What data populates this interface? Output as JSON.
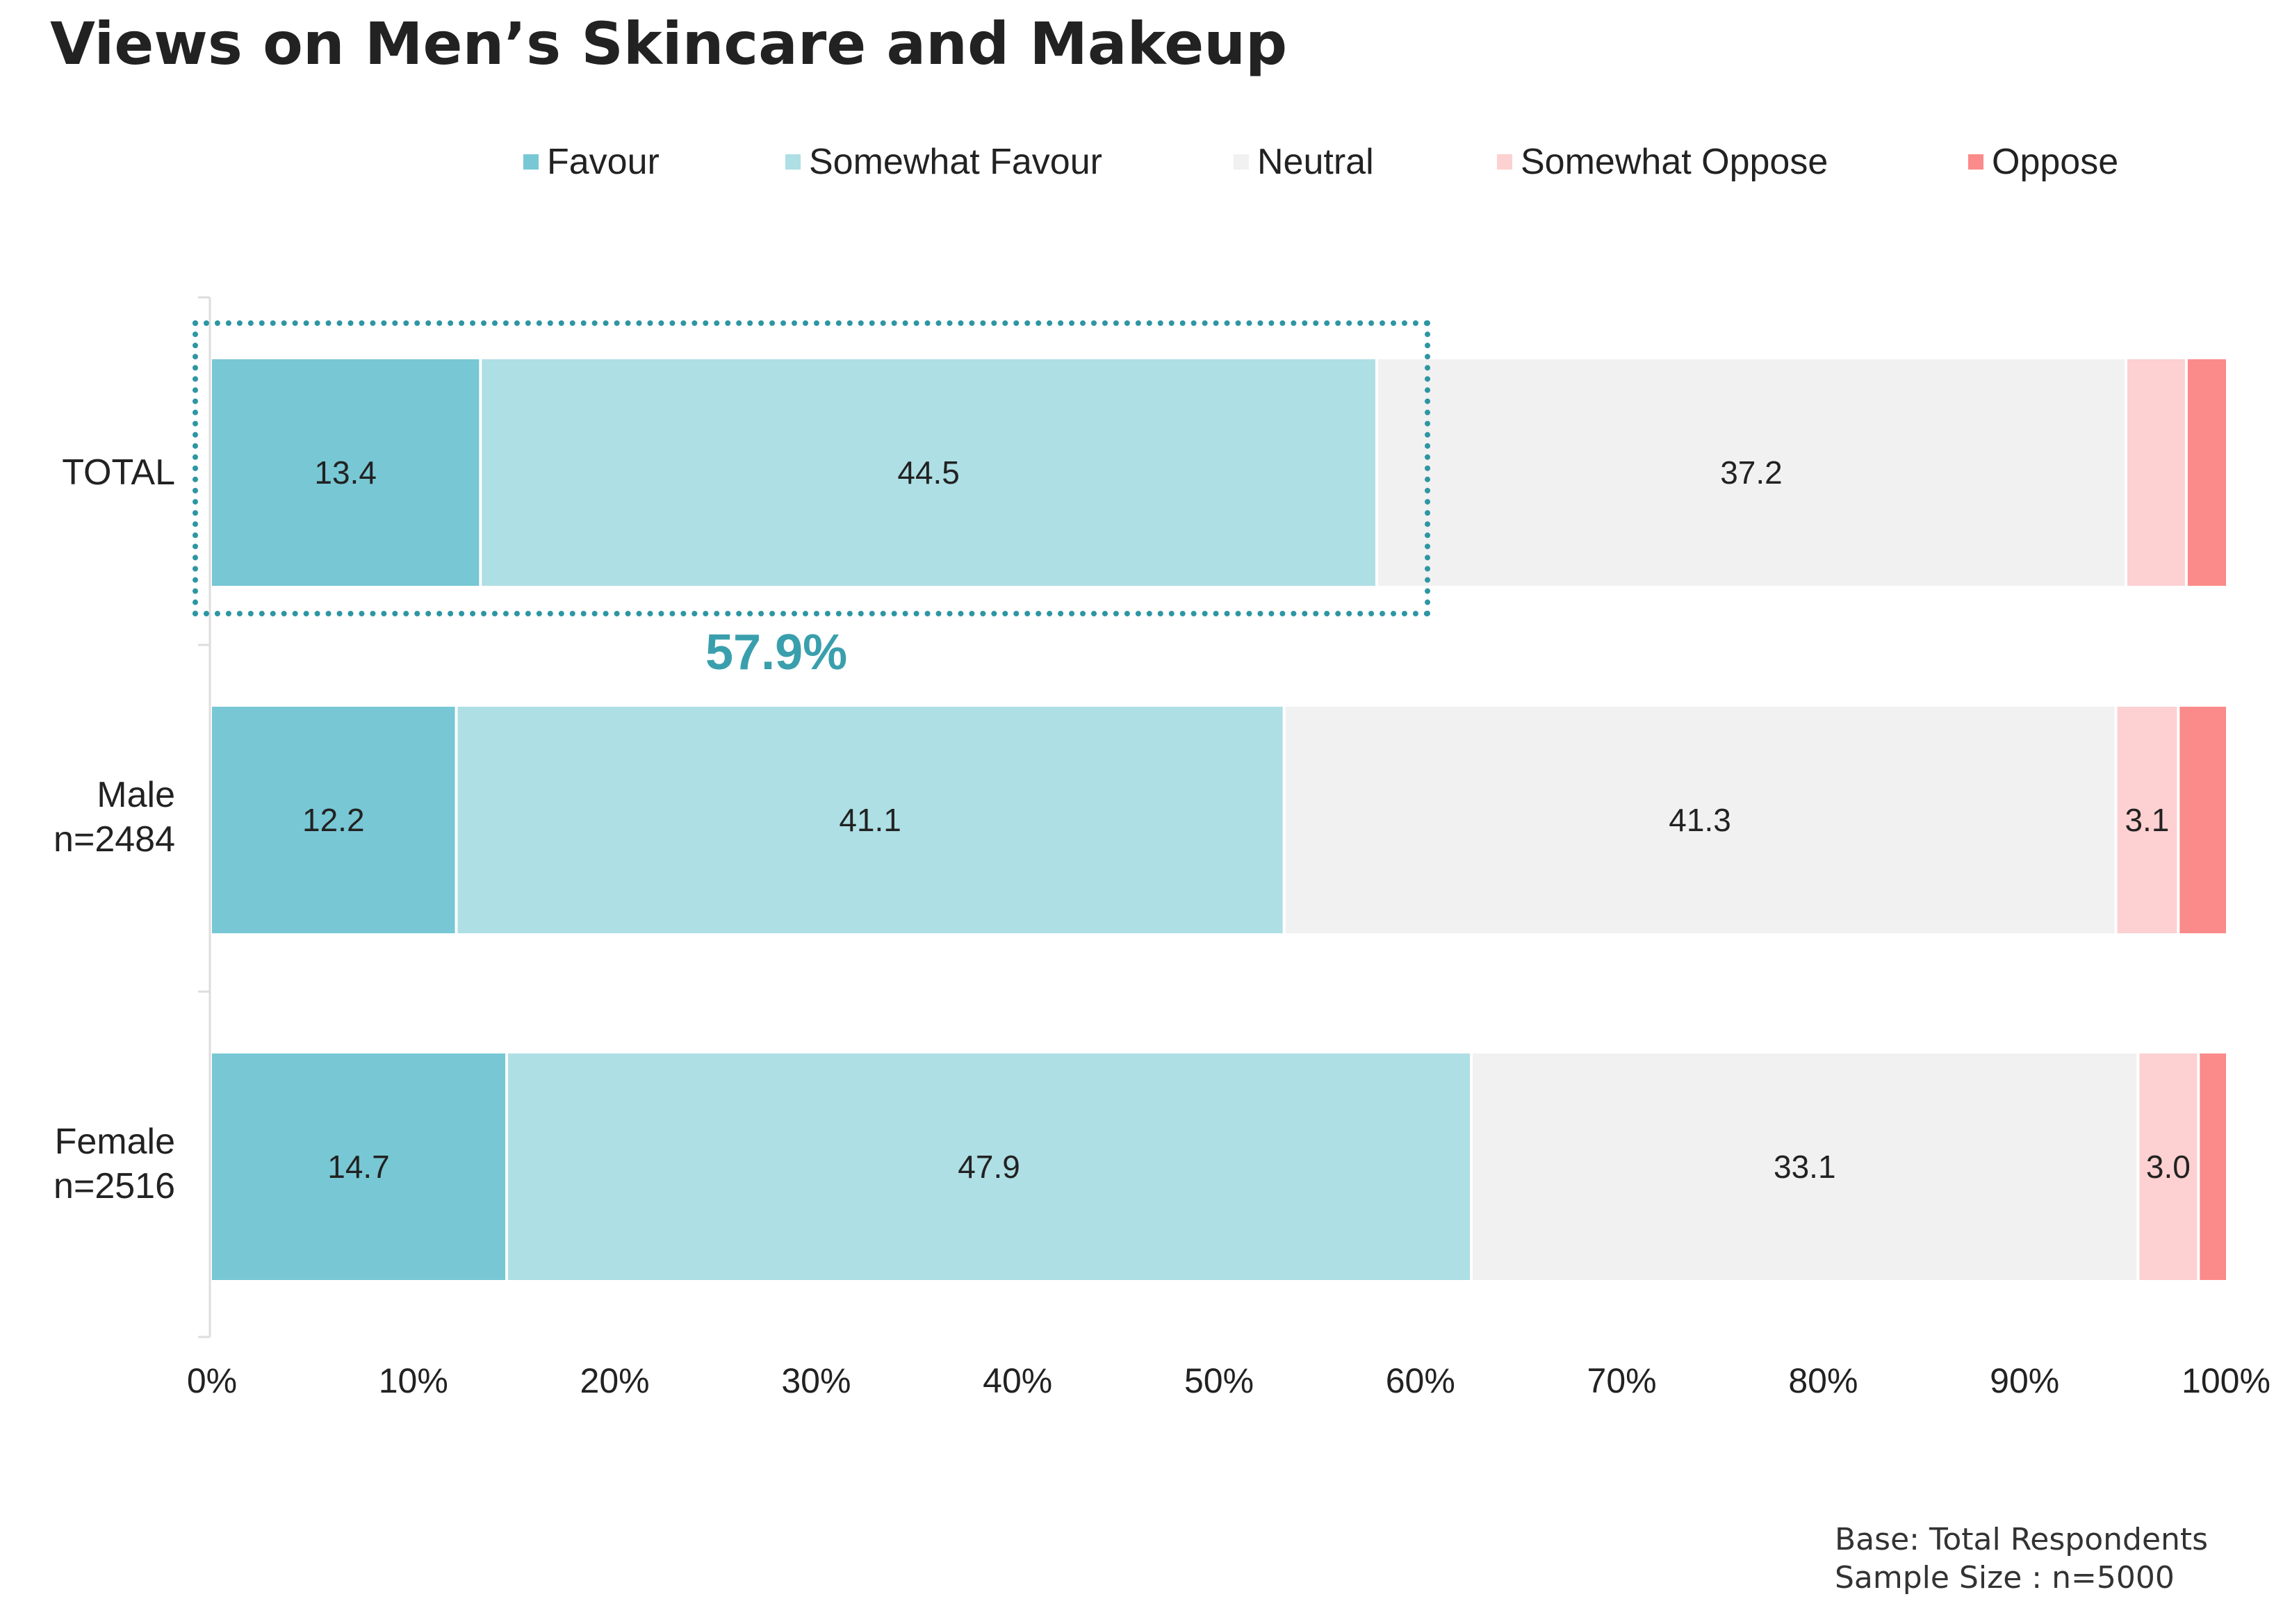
{
  "title": "Views on Men’s Skincare and Makeup",
  "legend": [
    {
      "label": "Favour",
      "color": "#78c7d4"
    },
    {
      "label": "Somewhat Favour",
      "color": "#aedfe5"
    },
    {
      "label": "Neutral",
      "color": "#f1f1f1"
    },
    {
      "label": "Somewhat Oppose",
      "color": "#fdd0d1"
    },
    {
      "label": "Oppose",
      "color": "#fb8a8a"
    }
  ],
  "rows": [
    {
      "line1": "TOTAL",
      "line2": ""
    },
    {
      "line1": "Male",
      "line2": "n=2484"
    },
    {
      "line1": "Female",
      "line2": "n=2516"
    }
  ],
  "highlight": {
    "value": "57.9%"
  },
  "notes": {
    "base": "Base: Total Respondents",
    "sample": "Sample Size : n=5000"
  },
  "chart_data": {
    "type": "bar",
    "orientation": "horizontal",
    "stacked": true,
    "title": "Views on Men’s Skincare and Makeup",
    "categories": [
      "TOTAL",
      "Male n=2484",
      "Female n=2516"
    ],
    "series": [
      {
        "name": "Favour",
        "values": [
          13.4,
          12.2,
          14.7
        ],
        "labels": [
          "13.4",
          "12.2",
          "14.7"
        ]
      },
      {
        "name": "Somewhat Favour",
        "values": [
          44.5,
          41.1,
          47.9
        ],
        "labels": [
          "44.5",
          "41.1",
          "47.9"
        ]
      },
      {
        "name": "Neutral",
        "values": [
          37.2,
          41.3,
          33.1
        ],
        "labels": [
          "37.2",
          "41.3",
          "33.1"
        ]
      },
      {
        "name": "Somewhat Oppose",
        "values": [
          3.0,
          3.1,
          3.0
        ],
        "labels": [
          "",
          "3.1",
          "3.0"
        ]
      },
      {
        "name": "Oppose",
        "values": [
          1.9,
          2.3,
          1.3
        ],
        "labels": [
          "",
          "",
          ""
        ]
      }
    ],
    "xlim": [
      0,
      100
    ],
    "x_ticks": [
      "0%",
      "10%",
      "20%",
      "30%",
      "40%",
      "50%",
      "60%",
      "70%",
      "80%",
      "90%",
      "100%"
    ],
    "grid": false,
    "legend_position": "top"
  }
}
